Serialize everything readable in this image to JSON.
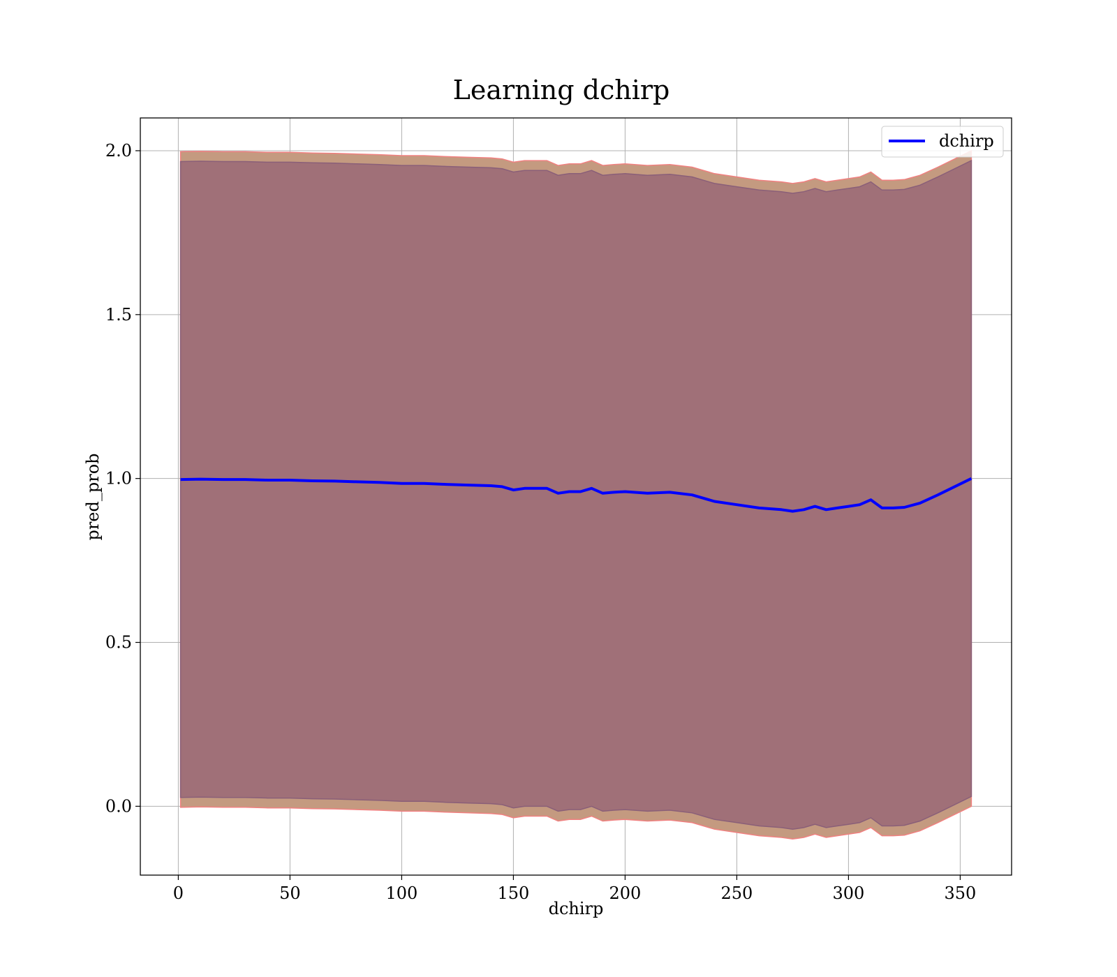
{
  "chart_data": {
    "type": "line",
    "title": "Learning dchirp",
    "xlabel": "dchirp",
    "ylabel": "pred_prob",
    "xlim": [
      -17,
      373
    ],
    "ylim": [
      -0.21,
      2.1
    ],
    "grid": true,
    "legend": {
      "placement": "top-right",
      "entries": [
        "dchirp"
      ]
    },
    "x_ticks": [
      0,
      50,
      100,
      150,
      200,
      250,
      300,
      350
    ],
    "x_tick_labels": [
      "0",
      "50",
      "100",
      "150",
      "200",
      "250",
      "300",
      "350"
    ],
    "y_ticks": [
      0.0,
      0.5,
      1.0,
      1.5,
      2.0
    ],
    "y_tick_labels": [
      "0.0",
      "0.5",
      "1.0",
      "1.5",
      "2.0"
    ],
    "x": [
      1,
      10,
      20,
      30,
      40,
      50,
      60,
      70,
      80,
      90,
      100,
      110,
      120,
      130,
      140,
      145,
      150,
      155,
      160,
      165,
      170,
      175,
      180,
      185,
      190,
      195,
      200,
      210,
      220,
      230,
      240,
      250,
      260,
      270,
      275,
      280,
      285,
      290,
      295,
      300,
      305,
      310,
      315,
      320,
      325,
      332,
      340,
      355
    ],
    "series": [
      {
        "name": "dchirp",
        "color": "#0000ff",
        "values": [
          0.997,
          0.998,
          0.997,
          0.997,
          0.995,
          0.995,
          0.993,
          0.992,
          0.99,
          0.988,
          0.985,
          0.985,
          0.982,
          0.98,
          0.978,
          0.975,
          0.965,
          0.97,
          0.97,
          0.97,
          0.955,
          0.96,
          0.96,
          0.97,
          0.955,
          0.958,
          0.96,
          0.955,
          0.958,
          0.95,
          0.93,
          0.92,
          0.91,
          0.905,
          0.9,
          0.905,
          0.915,
          0.905,
          0.91,
          0.915,
          0.92,
          0.935,
          0.91,
          0.91,
          0.912,
          0.925,
          0.95,
          1.0
        ]
      }
    ],
    "bands": [
      {
        "color": "#c49a80",
        "edge_color": "#f08080",
        "upper": [
          1.997,
          1.998,
          1.997,
          1.997,
          1.995,
          1.995,
          1.993,
          1.992,
          1.99,
          1.988,
          1.985,
          1.985,
          1.982,
          1.98,
          1.978,
          1.975,
          1.965,
          1.97,
          1.97,
          1.97,
          1.955,
          1.96,
          1.96,
          1.97,
          1.955,
          1.958,
          1.96,
          1.955,
          1.958,
          1.95,
          1.93,
          1.92,
          1.91,
          1.905,
          1.9,
          1.905,
          1.915,
          1.905,
          1.91,
          1.915,
          1.92,
          1.935,
          1.91,
          1.91,
          1.912,
          1.925,
          1.95,
          2.0
        ],
        "lower": [
          -0.003,
          -0.002,
          -0.003,
          -0.003,
          -0.005,
          -0.005,
          -0.007,
          -0.008,
          -0.01,
          -0.012,
          -0.015,
          -0.015,
          -0.018,
          -0.02,
          -0.022,
          -0.025,
          -0.035,
          -0.03,
          -0.03,
          -0.03,
          -0.045,
          -0.04,
          -0.04,
          -0.03,
          -0.045,
          -0.042,
          -0.04,
          -0.045,
          -0.042,
          -0.05,
          -0.07,
          -0.08,
          -0.09,
          -0.095,
          -0.1,
          -0.095,
          -0.085,
          -0.095,
          -0.09,
          -0.085,
          -0.08,
          -0.065,
          -0.09,
          -0.09,
          -0.088,
          -0.075,
          -0.05,
          0.0
        ]
      },
      {
        "color": "#a07078",
        "edge_color": "#8a5f78",
        "upper": [
          1.967,
          1.968,
          1.967,
          1.967,
          1.965,
          1.965,
          1.963,
          1.962,
          1.96,
          1.958,
          1.955,
          1.955,
          1.952,
          1.95,
          1.948,
          1.945,
          1.935,
          1.94,
          1.94,
          1.94,
          1.925,
          1.93,
          1.93,
          1.94,
          1.925,
          1.928,
          1.93,
          1.925,
          1.928,
          1.92,
          1.9,
          1.89,
          1.88,
          1.875,
          1.87,
          1.875,
          1.885,
          1.875,
          1.88,
          1.885,
          1.89,
          1.905,
          1.88,
          1.88,
          1.882,
          1.895,
          1.92,
          1.97
        ],
        "lower": [
          0.027,
          0.028,
          0.027,
          0.027,
          0.025,
          0.025,
          0.023,
          0.022,
          0.02,
          0.018,
          0.015,
          0.015,
          0.012,
          0.01,
          0.008,
          0.005,
          -0.005,
          0.0,
          0.0,
          0.0,
          -0.015,
          -0.01,
          -0.01,
          0.0,
          -0.015,
          -0.012,
          -0.01,
          -0.015,
          -0.012,
          -0.02,
          -0.04,
          -0.05,
          -0.06,
          -0.065,
          -0.07,
          -0.065,
          -0.055,
          -0.065,
          -0.06,
          -0.055,
          -0.05,
          -0.035,
          -0.06,
          -0.06,
          -0.058,
          -0.045,
          -0.02,
          0.03
        ]
      }
    ]
  }
}
